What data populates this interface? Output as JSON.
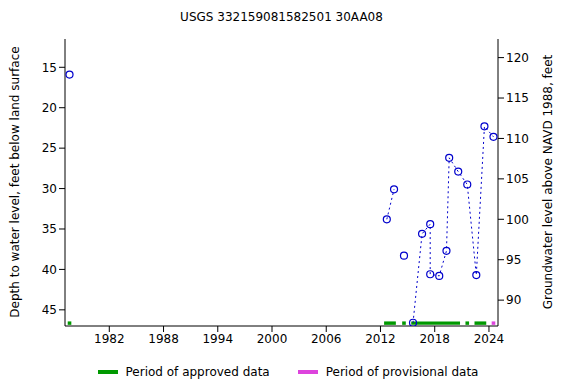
{
  "chart_data": {
    "type": "line",
    "title": "USGS 332159081582501 30AA08",
    "y_label": "Depth to water level, feet below land surface",
    "y2_label": "Groundwater level above NAVD 1988, feet",
    "x": [
      1977.6,
      null,
      2012.7,
      2013.5,
      null,
      2014.6,
      null,
      2015.6,
      2016.6,
      2017.5,
      2017.5,
      2018.5,
      2019.3,
      2019.6,
      2020.6,
      2021.6,
      2022.6,
      2023.5,
      2024.5
    ],
    "values": [
      15.9,
      null,
      33.8,
      30.1,
      null,
      38.3,
      null,
      46.6,
      35.6,
      34.4,
      40.6,
      40.8,
      37.7,
      26.2,
      27.9,
      29.5,
      40.7,
      22.3,
      23.6
    ],
    "color": "#0000cc",
    "marker": "circle",
    "line_style": "dotted",
    "xlim": [
      1977.1,
      2025.0
    ],
    "xticks": [
      1982,
      1988,
      1994,
      2000,
      2006,
      2012,
      2018,
      2024
    ],
    "ylim": [
      11.5,
      47.0
    ],
    "yticks": [
      15,
      20,
      25,
      30,
      35,
      40,
      45
    ],
    "y2lim": [
      86.8,
      122.3
    ],
    "y2ticks": [
      90,
      95,
      100,
      105,
      110,
      115,
      120
    ],
    "periods": [
      {
        "name": "Period of approved data",
        "color": "#009900",
        "ranges": [
          [
            1977.4,
            1977.8
          ],
          [
            2012.4,
            2013.7
          ],
          [
            2014.4,
            2014.8
          ],
          [
            2015.4,
            2020.8
          ],
          [
            2021.4,
            2021.8
          ],
          [
            2022.4,
            2023.7
          ]
        ]
      },
      {
        "name": "Period of provisional data",
        "color": "#dd44dd",
        "ranges": [
          [
            2024.3,
            2024.7
          ]
        ]
      }
    ]
  }
}
